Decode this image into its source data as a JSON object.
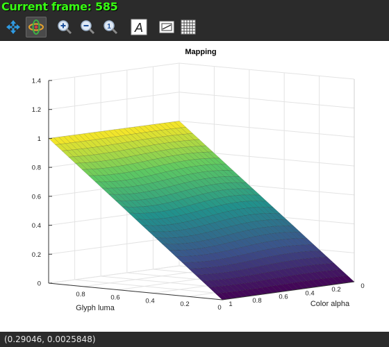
{
  "window": {
    "menu": [],
    "overlay_text": "Current frame: 585"
  },
  "toolbar": {
    "tools": [
      {
        "name": "pan-icon",
        "active": false
      },
      {
        "name": "rotate-3d-icon",
        "active": true
      },
      {
        "name": "zoom-in-icon",
        "active": false
      },
      {
        "name": "zoom-out-icon",
        "active": false
      },
      {
        "name": "zoom-reset-icon",
        "active": false
      },
      {
        "name": "text-icon",
        "active": false
      },
      {
        "name": "legend-icon",
        "active": false
      },
      {
        "name": "grid-icon",
        "active": false
      }
    ]
  },
  "chart_data": {
    "type": "surface",
    "title": "Mapping",
    "xlabel": "Color alpha",
    "ylabel": "Glyph luma",
    "zlabel": "",
    "xlim": [
      0,
      1
    ],
    "ylim": [
      0,
      1
    ],
    "zlim": [
      0,
      1.4
    ],
    "x_ticks": [
      0,
      0.2,
      0.4,
      0.6,
      0.8,
      1
    ],
    "y_ticks": [
      0,
      0.2,
      0.4,
      0.6,
      0.8
    ],
    "z_ticks": [
      0,
      0.2,
      0.4,
      0.6,
      0.8,
      1,
      1.2,
      1.4
    ],
    "colormap": [
      "#440154",
      "#3b528b",
      "#21918c",
      "#5ec962",
      "#fde725"
    ],
    "corner_values": [
      {
        "x": 0,
        "y": 0,
        "z": 0
      },
      {
        "x": 1,
        "y": 0,
        "z": 0
      },
      {
        "x": 0,
        "y": 1,
        "z": 1
      },
      {
        "x": 1,
        "y": 1,
        "z": 1
      }
    ],
    "grid": true
  },
  "status": {
    "coordinates": "(0.29046, 0.0025848)"
  }
}
